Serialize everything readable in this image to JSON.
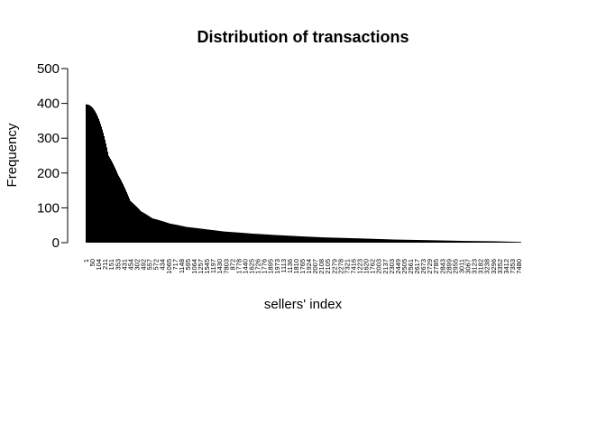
{
  "chart_data": {
    "type": "bar",
    "title": "Distribution of transactions",
    "xlabel": "sellers' index",
    "ylabel": "Frequency",
    "ylim": [
      0,
      500
    ],
    "yticks": [
      0,
      100,
      200,
      300,
      400,
      500
    ],
    "bar_color": "#000000",
    "x_range": [
      1,
      7480
    ],
    "xtick_labels": [
      "1",
      "50",
      "104",
      "211",
      "151",
      "353",
      "431",
      "454",
      "302",
      "492",
      "557",
      "572",
      "434",
      "1065",
      "717",
      "1148",
      "595",
      "1064",
      "1257",
      "1545",
      "1197",
      "1430",
      "7803",
      "872",
      "1778",
      "1440",
      "1625",
      "1726",
      "1776",
      "1895",
      "1973",
      "1113",
      "1136",
      "1810",
      "1765",
      "1924",
      "2007",
      "2108",
      "2105",
      "2279",
      "2278",
      "7321",
      "7416",
      "1223",
      "1620",
      "1762",
      "2003",
      "2137",
      "2303",
      "2449",
      "2505",
      "2561",
      "2617",
      "2673",
      "2729",
      "2785",
      "2843",
      "2899",
      "2955",
      "3011",
      "3067",
      "3123",
      "3182",
      "3238",
      "3296",
      "3352",
      "3412",
      "7353",
      "7480"
    ],
    "frequency_profile": [
      {
        "index": 1,
        "value": 397
      },
      {
        "index": 12,
        "value": 250
      },
      {
        "index": 25,
        "value": 195
      },
      {
        "index": 50,
        "value": 120
      },
      {
        "index": 80,
        "value": 90
      },
      {
        "index": 120,
        "value": 70
      },
      {
        "index": 200,
        "value": 55
      },
      {
        "index": 300,
        "value": 45
      },
      {
        "index": 450,
        "value": 38
      },
      {
        "index": 600,
        "value": 32
      },
      {
        "index": 900,
        "value": 26
      },
      {
        "index": 1200,
        "value": 22
      },
      {
        "index": 1600,
        "value": 18
      },
      {
        "index": 2000,
        "value": 15
      },
      {
        "index": 2500,
        "value": 13
      },
      {
        "index": 3000,
        "value": 11
      },
      {
        "index": 3500,
        "value": 9
      },
      {
        "index": 4000,
        "value": 8
      },
      {
        "index": 4500,
        "value": 7
      },
      {
        "index": 5000,
        "value": 6
      },
      {
        "index": 5500,
        "value": 5
      },
      {
        "index": 6000,
        "value": 4.5
      },
      {
        "index": 6500,
        "value": 4
      },
      {
        "index": 7000,
        "value": 3
      },
      {
        "index": 7480,
        "value": 2
      }
    ]
  }
}
